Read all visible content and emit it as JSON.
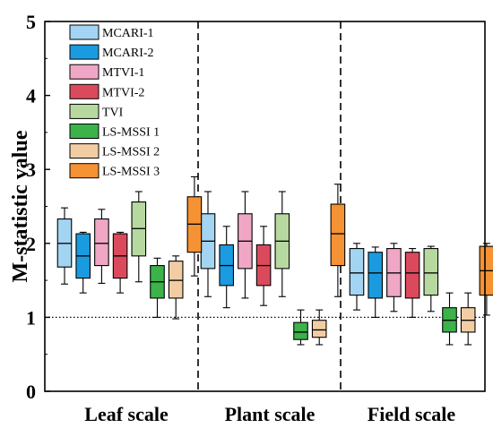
{
  "chart_data": {
    "type": "box",
    "ylabel": "M-statistic value",
    "xlabel": "",
    "ylim": [
      0,
      5
    ],
    "yticks": [
      "0",
      "1",
      "2",
      "3",
      "4",
      "5"
    ],
    "categories": [
      "Leaf scale",
      "Plant scale",
      "Field scale"
    ],
    "reference_line": 1,
    "grid": false,
    "legend_position": "top-left",
    "colors": {
      "MCARI-1": "#a3d4f2",
      "MCARI-2": "#1a9be0",
      "MTVI-1": "#f0a7c6",
      "MTVI-2": "#db4a5c",
      "TVI": "#b7d9a0",
      "LS-MSSI 1": "#3bb24a",
      "LS-MSSI 2": "#f2cda4",
      "LS-MSSI 3": "#f49234"
    },
    "series": [
      {
        "name": "MCARI-1",
        "boxes": [
          {
            "whisker_low": 1.45,
            "q1": 1.68,
            "median": 2.0,
            "q3": 2.33,
            "whisker_high": 2.48
          },
          {
            "whisker_low": 1.28,
            "q1": 1.66,
            "median": 2.03,
            "q3": 2.4,
            "whisker_high": 2.7
          },
          {
            "whisker_low": 1.1,
            "q1": 1.3,
            "median": 1.6,
            "q3": 1.93,
            "whisker_high": 2.0
          }
        ]
      },
      {
        "name": "MCARI-2",
        "boxes": [
          {
            "whisker_low": 1.33,
            "q1": 1.53,
            "median": 1.83,
            "q3": 2.13,
            "whisker_high": 2.15
          },
          {
            "whisker_low": 1.13,
            "q1": 1.43,
            "median": 1.7,
            "q3": 1.98,
            "whisker_high": 2.23
          },
          {
            "whisker_low": 1.0,
            "q1": 1.26,
            "median": 1.6,
            "q3": 1.88,
            "whisker_high": 1.95
          }
        ]
      },
      {
        "name": "MTVI-1",
        "boxes": [
          {
            "whisker_low": 1.46,
            "q1": 1.7,
            "median": 2.0,
            "q3": 2.33,
            "whisker_high": 2.46
          },
          {
            "whisker_low": 1.26,
            "q1": 1.66,
            "median": 2.03,
            "q3": 2.4,
            "whisker_high": 2.7
          },
          {
            "whisker_low": 1.08,
            "q1": 1.28,
            "median": 1.6,
            "q3": 1.93,
            "whisker_high": 2.0
          }
        ]
      },
      {
        "name": "MTVI-2",
        "boxes": [
          {
            "whisker_low": 1.33,
            "q1": 1.53,
            "median": 1.83,
            "q3": 2.13,
            "whisker_high": 2.15
          },
          {
            "whisker_low": 1.16,
            "q1": 1.43,
            "median": 1.7,
            "q3": 1.98,
            "whisker_high": 2.23
          },
          {
            "whisker_low": 1.0,
            "q1": 1.26,
            "median": 1.6,
            "q3": 1.88,
            "whisker_high": 1.93
          }
        ]
      },
      {
        "name": "TVI",
        "boxes": [
          {
            "whisker_low": 1.48,
            "q1": 1.83,
            "median": 2.2,
            "q3": 2.56,
            "whisker_high": 2.7
          },
          {
            "whisker_low": 1.28,
            "q1": 1.66,
            "median": 2.03,
            "q3": 2.4,
            "whisker_high": 2.7
          },
          {
            "whisker_low": 1.08,
            "q1": 1.3,
            "median": 1.6,
            "q3": 1.93,
            "whisker_high": 1.96
          }
        ]
      },
      {
        "name": "LS-MSSI 1",
        "boxes": [
          {
            "whisker_low": 1.0,
            "q1": 1.26,
            "median": 1.48,
            "q3": 1.7,
            "whisker_high": 1.8
          },
          {
            "whisker_low": 0.63,
            "q1": 0.7,
            "median": 0.8,
            "q3": 0.93,
            "whisker_high": 1.1
          },
          {
            "whisker_low": 0.63,
            "q1": 0.8,
            "median": 0.96,
            "q3": 1.13,
            "whisker_high": 1.33
          }
        ]
      },
      {
        "name": "LS-MSSI 2",
        "boxes": [
          {
            "whisker_low": 0.98,
            "q1": 1.26,
            "median": 1.5,
            "q3": 1.76,
            "whisker_high": 1.83
          },
          {
            "whisker_low": 0.63,
            "q1": 0.73,
            "median": 0.83,
            "q3": 0.96,
            "whisker_high": 1.1
          },
          {
            "whisker_low": 0.63,
            "q1": 0.8,
            "median": 0.96,
            "q3": 1.13,
            "whisker_high": 1.33
          }
        ]
      },
      {
        "name": "LS-MSSI 3",
        "boxes": [
          {
            "whisker_low": 1.56,
            "q1": 1.88,
            "median": 2.26,
            "q3": 2.63,
            "whisker_high": 2.9
          },
          {
            "whisker_low": 1.28,
            "q1": 1.7,
            "median": 2.13,
            "q3": 2.53,
            "whisker_high": 2.8
          },
          {
            "whisker_low": 1.03,
            "q1": 1.3,
            "median": 1.63,
            "q3": 1.96,
            "whisker_high": 2.0
          }
        ]
      }
    ]
  }
}
